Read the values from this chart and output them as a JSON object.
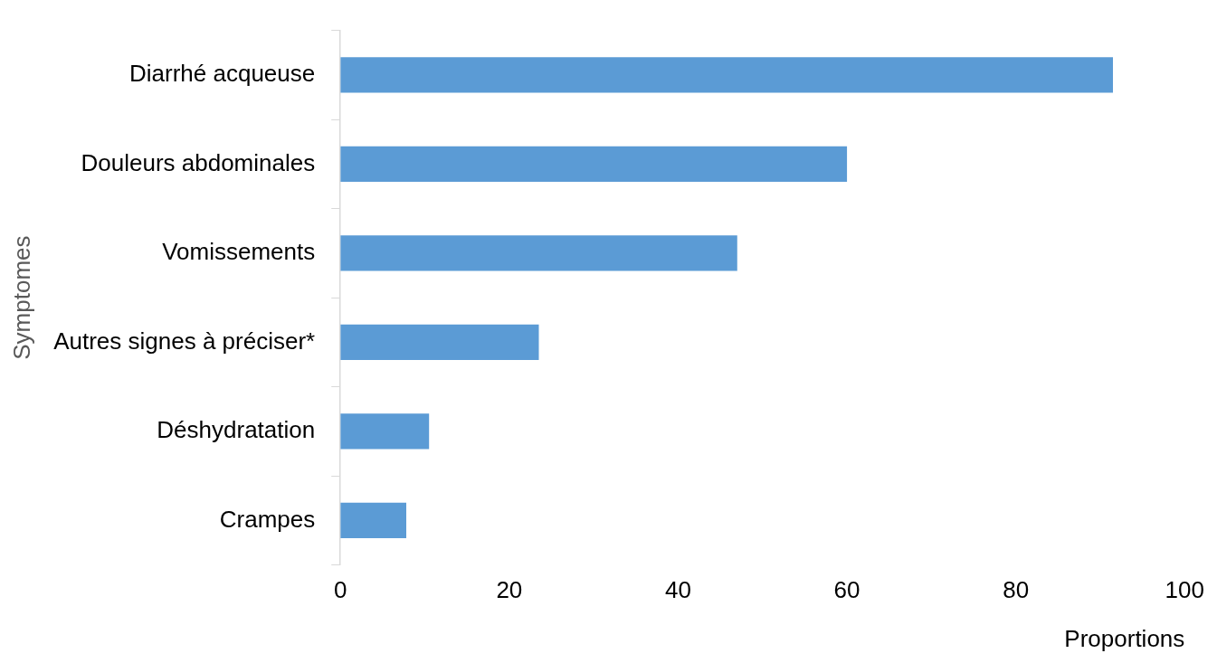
{
  "chart_data": {
    "type": "bar",
    "orientation": "horizontal",
    "categories": [
      "Diarrhé acqueuse",
      "Douleurs abdominales",
      "Vomissements",
      "Autres signes à préciser*",
      "Déshydratation",
      "Crampes"
    ],
    "values": [
      91.5,
      60,
      47,
      23.5,
      10.5,
      7.8
    ],
    "color": "#5b9bd5",
    "xlim": [
      0,
      100
    ],
    "xticks": [
      0,
      20,
      40,
      60,
      80,
      100
    ],
    "xlabel": "Proportions",
    "ylabel": "Symptomes",
    "grid": false,
    "legend": false
  }
}
